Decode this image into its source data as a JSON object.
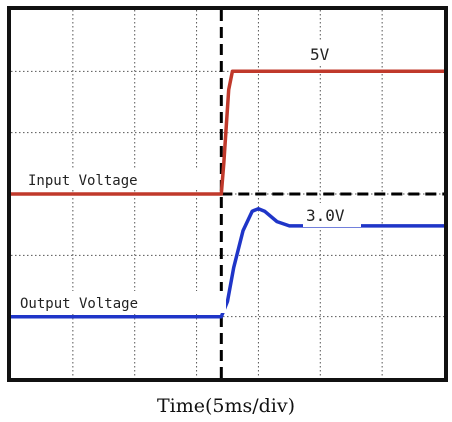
{
  "chart_data": {
    "type": "line",
    "xlabel": "Time(5ms/div)",
    "ylabel": "",
    "title": "",
    "x_divisions": 7,
    "y_divisions": 6,
    "grid": true,
    "trigger_marker": {
      "x_division": 3.4,
      "style": "dashed"
    },
    "reference_marker": {
      "y_division": 3.0,
      "style": "dashed",
      "from_x_division": 3.4
    },
    "annotations": [
      "5V",
      "3.0V"
    ],
    "series": [
      {
        "name": "Input Voltage",
        "color": "#c0392b",
        "points": [
          [
            0,
            3.0
          ],
          [
            3.4,
            3.0
          ],
          [
            3.44,
            3.5
          ],
          [
            3.52,
            4.7
          ],
          [
            3.58,
            5.0
          ],
          [
            7.0,
            5.0
          ]
        ]
      },
      {
        "name": "Output Voltage",
        "color": "#1f35c8",
        "points": [
          [
            0,
            1.0
          ],
          [
            3.4,
            1.0
          ],
          [
            3.5,
            1.25
          ],
          [
            3.6,
            1.8
          ],
          [
            3.75,
            2.4
          ],
          [
            3.9,
            2.72
          ],
          [
            4.0,
            2.76
          ],
          [
            4.1,
            2.72
          ],
          [
            4.3,
            2.55
          ],
          [
            4.5,
            2.48
          ],
          [
            5.0,
            2.48
          ],
          [
            7.0,
            2.48
          ]
        ]
      }
    ]
  }
}
